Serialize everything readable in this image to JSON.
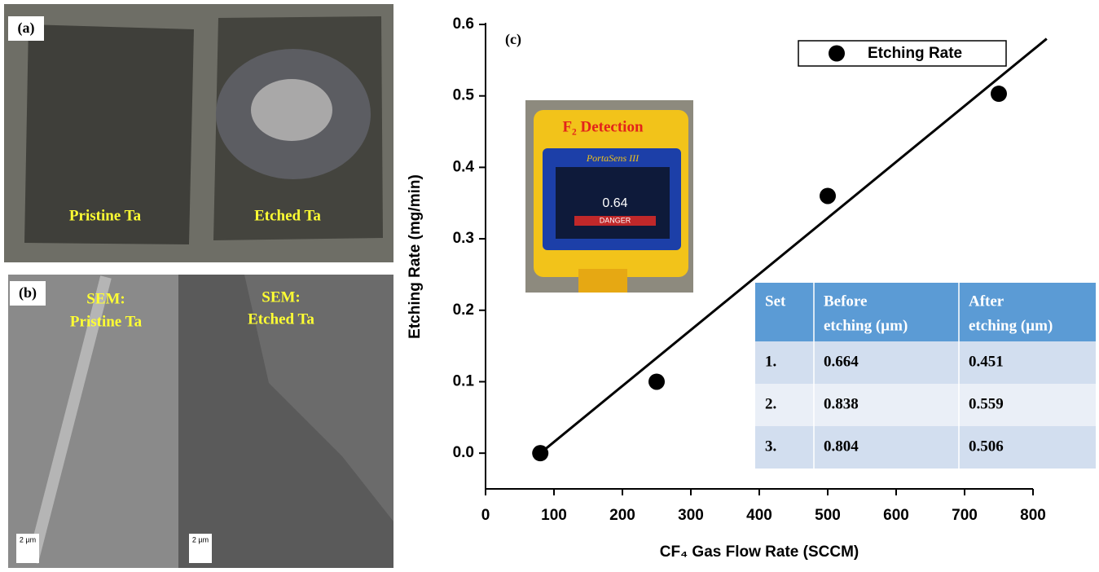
{
  "panel_a": {
    "label": "(a)",
    "left": "Pristine Ta",
    "right": "Etched Ta"
  },
  "panel_b": {
    "label": "(b)",
    "left": [
      "SEM:",
      "Pristine Ta"
    ],
    "right": [
      "SEM:",
      "Etched Ta"
    ],
    "scale_bar": [
      "2 µm",
      "2 µm"
    ]
  },
  "inset": {
    "title": "F₂ Detection",
    "device": "PortaSens III",
    "reading": "0.64",
    "alarm": "DANGER"
  },
  "table": {
    "header": [
      [
        "Set"
      ],
      [
        "Before",
        "etching (µm)"
      ],
      [
        "After",
        "etching (µm)"
      ]
    ],
    "rows": [
      [
        "1.",
        "0.664",
        "0.451"
      ],
      [
        "2.",
        "0.838",
        "0.559"
      ],
      [
        "3.",
        "0.804",
        "0.506"
      ]
    ]
  },
  "chart_data": {
    "type": "scatter",
    "label": "(c)",
    "xlabel": "CF₄ Gas Flow Rate (SCCM)",
    "ylabel": "Etching Rate (mg/min)",
    "x": [
      80,
      250,
      500,
      750
    ],
    "series": [
      {
        "name": "Etching Rate",
        "color": "#000000",
        "values": [
          0,
          0.1,
          0.36,
          0.503
        ]
      }
    ],
    "fit": {
      "x": [
        80,
        820
      ],
      "y": [
        0,
        0.58
      ]
    },
    "xlim": [
      0,
      800
    ],
    "ylim": [
      -0.05,
      0.6
    ],
    "xticks": [
      0,
      100,
      200,
      300,
      400,
      500,
      600,
      700,
      800
    ],
    "yticks": [
      {
        "value": 0,
        "label": "0.0"
      },
      0.1,
      0.2,
      0.3,
      0.4,
      0.5,
      0.6
    ],
    "legend": "upper right"
  }
}
